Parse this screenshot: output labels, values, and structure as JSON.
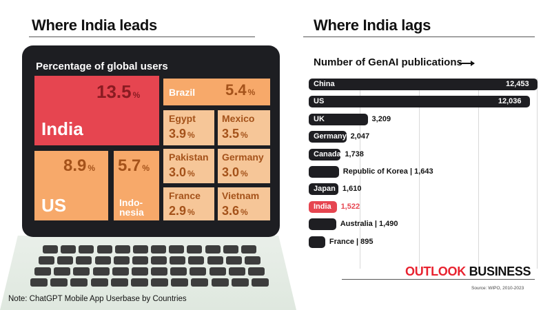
{
  "left": {
    "heading": "Where India leads",
    "panel_title": "Percentage of global users",
    "note": "Note: ChatGPT Mobile App Userbase by Countries"
  },
  "right": {
    "heading": "Where India lags",
    "subtitle": "Number of GenAI publications",
    "brand_part1": "OUTLOOK",
    "brand_part2": "BUSINESS",
    "source": "Source: WIPO, 2010-2023"
  },
  "colors": {
    "highlight": "#e64550",
    "orange": "#f7a96a",
    "peach": "#fbcb9a",
    "light": "#f6c698",
    "bar": "#1e1e22"
  },
  "chart_data": [
    {
      "type": "treemap",
      "title": "Percentage of global users",
      "unit": "%",
      "items": [
        {
          "name": "India",
          "value": 13.5,
          "value_label": "13.5"
        },
        {
          "name": "US",
          "value": 8.9,
          "value_label": "8.9"
        },
        {
          "name": "Indo-nesia",
          "value": 5.7,
          "value_label": "5.7"
        },
        {
          "name": "Brazil",
          "value": 5.4,
          "value_label": "5.4"
        },
        {
          "name": "Egypt",
          "value": 3.9,
          "value_label": "3.9"
        },
        {
          "name": "Mexico",
          "value": 3.5,
          "value_label": "3.5"
        },
        {
          "name": "Pakistan",
          "value": 3.0,
          "value_label": "3.0"
        },
        {
          "name": "Germany",
          "value": 3.0,
          "value_label": "3.0"
        },
        {
          "name": "France",
          "value": 2.9,
          "value_label": "2.9"
        },
        {
          "name": "Vietnam",
          "value": 3.6,
          "value_label": "3.6"
        }
      ]
    },
    {
      "type": "bar",
      "orientation": "horizontal",
      "title": "Number of GenAI publications",
      "categories": [
        "China",
        "US",
        "UK",
        "Germany",
        "Canada",
        "Republic of Korea",
        "Japan",
        "India",
        "Australia",
        "France"
      ],
      "values": [
        12453,
        12036,
        3209,
        2047,
        1738,
        1643,
        1610,
        1522,
        1490,
        895
      ],
      "value_labels": [
        "12,453",
        "12,036",
        "3,209",
        "2,047",
        "1,738",
        "Republic of Korea | 1,643",
        "1,610",
        "1,522",
        "Australia | 1,490",
        "France  | 895"
      ],
      "highlight": "India"
    }
  ]
}
